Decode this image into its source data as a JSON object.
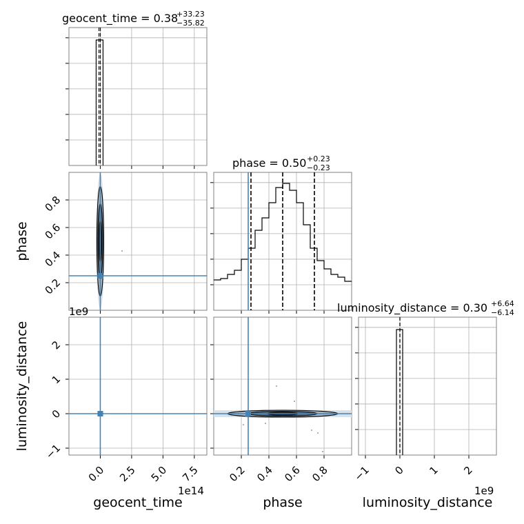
{
  "chart_data": {
    "type": "corner",
    "parameters": [
      {
        "name": "geocent_time",
        "title_main": "geocent_time = 0.38",
        "title_plus": "+33.23",
        "title_minus": "−35.82",
        "xticks": [
          "0.0",
          "2.5",
          "5.0",
          "7.5"
        ],
        "offset": "1e14",
        "range": [
          -2.5,
          8.5
        ],
        "unit_scale": "1e14"
      },
      {
        "name": "phase",
        "title_main": "phase = 0.50",
        "title_plus": "+0.23",
        "title_minus": "−0.23",
        "xticks": [
          "0.2",
          "0.4",
          "0.6",
          "0.8"
        ],
        "yticks": [
          "0.2",
          "0.4",
          "0.6",
          "0.8"
        ],
        "range": [
          0.0,
          1.0
        ],
        "quantiles": [
          0.27,
          0.5,
          0.73
        ],
        "hist_bins": [
          0.22,
          0.23,
          0.26,
          0.29,
          0.37,
          0.45,
          0.58,
          0.67,
          0.78,
          0.89,
          0.92,
          0.87,
          0.78,
          0.62,
          0.45,
          0.36,
          0.3,
          0.26,
          0.24,
          0.21
        ]
      },
      {
        "name": "luminosity_distance",
        "title_main": "luminosity_distance = 0.30",
        "title_plus": "+6.64",
        "title_minus": "−6.14",
        "xticks": [
          "−1",
          "0",
          "1",
          "2"
        ],
        "yticks": [
          "−1",
          "0",
          "1",
          "2"
        ],
        "offset": "1e9",
        "range": [
          -1.2,
          2.8
        ]
      }
    ],
    "truths": {
      "geocent_time": 0.0,
      "phase": 0.25,
      "luminosity_distance": 0.0
    },
    "truth_color": "#4682b4",
    "grid": true
  }
}
